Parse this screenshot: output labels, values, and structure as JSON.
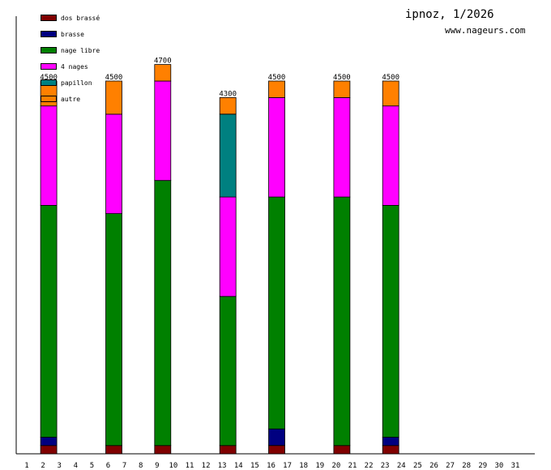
{
  "header": {
    "title": "ipnoz, 1/2026",
    "site": "www.nageurs.com"
  },
  "chart_data": {
    "type": "bar",
    "stacked": true,
    "grid": false,
    "legend_position": "top-left",
    "x": [
      1,
      2,
      3,
      4,
      5,
      6,
      7,
      8,
      9,
      10,
      11,
      12,
      13,
      14,
      15,
      16,
      17,
      18,
      19,
      20,
      21,
      22,
      23,
      24,
      25,
      26,
      27,
      28,
      29,
      30,
      31
    ],
    "ylim": [
      0,
      4500
    ],
    "series": [
      {
        "name": "dos brassé",
        "color": "#800000",
        "values": [
          0,
          100,
          0,
          0,
          0,
          100,
          0,
          0,
          100,
          0,
          0,
          0,
          100,
          0,
          0,
          100,
          0,
          0,
          0,
          100,
          0,
          0,
          100,
          0,
          0,
          0,
          0,
          0,
          0,
          0,
          0
        ]
      },
      {
        "name": "brasse",
        "color": "#000080",
        "values": [
          0,
          100,
          0,
          0,
          0,
          0,
          0,
          0,
          0,
          0,
          0,
          0,
          0,
          0,
          0,
          200,
          0,
          0,
          0,
          0,
          0,
          0,
          100,
          0,
          0,
          0,
          0,
          0,
          0,
          0,
          0
        ]
      },
      {
        "name": "nage libre",
        "color": "#008000",
        "values": [
          0,
          2800,
          0,
          0,
          0,
          2800,
          0,
          0,
          3200,
          0,
          0,
          0,
          1800,
          0,
          0,
          2800,
          0,
          0,
          0,
          3000,
          0,
          0,
          2800,
          0,
          0,
          0,
          0,
          0,
          0,
          0,
          0
        ]
      },
      {
        "name": "4 nages",
        "color": "#ff00ff",
        "values": [
          0,
          1200,
          0,
          0,
          0,
          1200,
          0,
          0,
          1200,
          0,
          0,
          0,
          1200,
          0,
          0,
          1200,
          0,
          0,
          0,
          1200,
          0,
          0,
          1200,
          0,
          0,
          0,
          0,
          0,
          0,
          0,
          0
        ]
      },
      {
        "name": "papillon",
        "color": "#008080",
        "values": [
          0,
          0,
          0,
          0,
          0,
          0,
          0,
          0,
          0,
          0,
          0,
          0,
          1000,
          0,
          0,
          0,
          0,
          0,
          0,
          0,
          0,
          0,
          0,
          0,
          0,
          0,
          0,
          0,
          0,
          0,
          0
        ]
      },
      {
        "name": "autre",
        "color": "#ff8000",
        "values": [
          0,
          300,
          0,
          0,
          0,
          400,
          0,
          0,
          200,
          0,
          0,
          0,
          200,
          0,
          0,
          200,
          0,
          0,
          0,
          200,
          0,
          0,
          300,
          0,
          0,
          0,
          0,
          0,
          0,
          0,
          0
        ]
      }
    ],
    "totals": [
      {
        "day": 2,
        "label": "4500"
      },
      {
        "day": 6,
        "label": "4500"
      },
      {
        "day": 9,
        "label": "4700"
      },
      {
        "day": 13,
        "label": "4300"
      },
      {
        "day": 16,
        "label": "4500"
      },
      {
        "day": 20,
        "label": "4500"
      },
      {
        "day": 23,
        "label": "4500"
      }
    ]
  }
}
